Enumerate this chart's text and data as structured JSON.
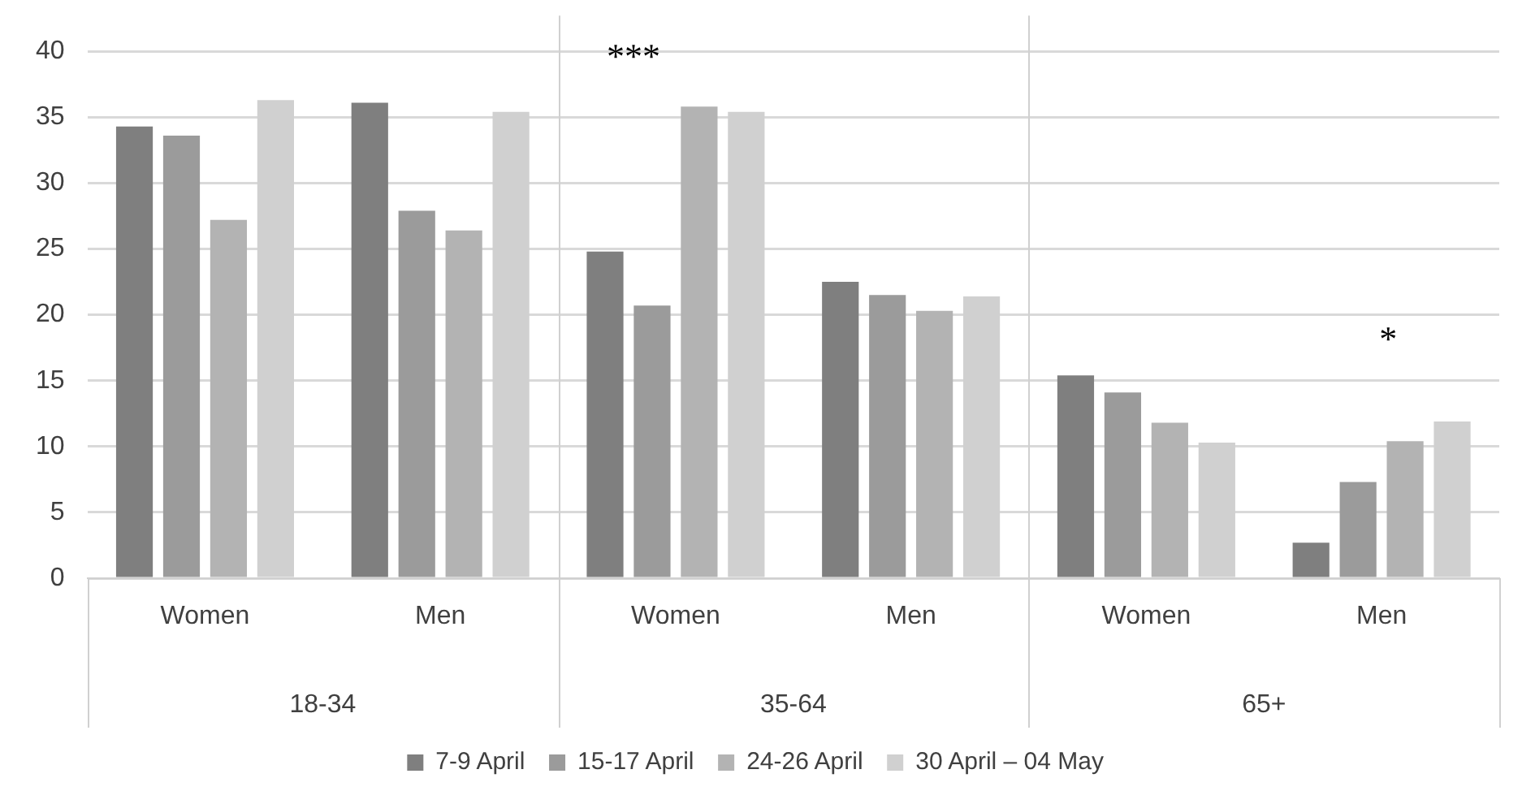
{
  "chart_data": {
    "type": "bar",
    "categories": [
      "Women",
      "Men",
      "Women",
      "Men",
      "Women",
      "Men"
    ],
    "series": [
      {
        "name": "7-9 April",
        "color": "#7f7f7f",
        "values": [
          34.3,
          36.1,
          24.8,
          22.5,
          15.4,
          2.7
        ]
      },
      {
        "name": "15-17 April",
        "color": "#9b9b9b",
        "values": [
          33.6,
          27.9,
          20.7,
          21.5,
          14.1,
          7.3
        ]
      },
      {
        "name": "24-26 April",
        "color": "#b3b3b3",
        "values": [
          27.2,
          26.4,
          35.8,
          20.3,
          11.8,
          10.4
        ]
      },
      {
        "name": "30 April – 04 May",
        "color": "#d0d0d0",
        "values": [
          36.3,
          35.4,
          35.4,
          21.4,
          10.3,
          11.9
        ]
      }
    ],
    "ylim": [
      0,
      40
    ],
    "yticks": [
      0,
      5,
      10,
      15,
      20,
      25,
      30,
      35,
      40
    ],
    "grid": "y",
    "legend": "bottom",
    "annotations": [
      "***",
      "*",
      "18-34",
      "35-64",
      "65+"
    ]
  }
}
